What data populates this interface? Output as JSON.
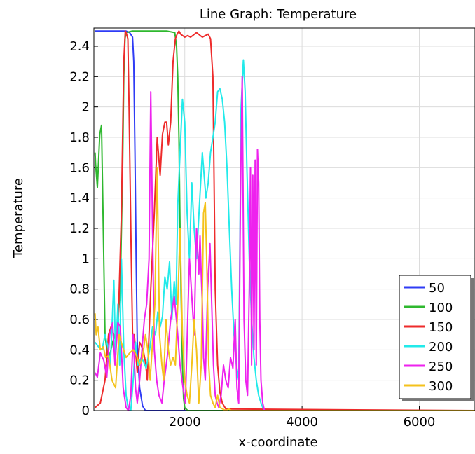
{
  "chart_data": {
    "type": "line",
    "title": "Line Graph: Temperature",
    "xlabel": "x-coordinate",
    "ylabel": "Temperature",
    "xlim": [
      450,
      6950
    ],
    "ylim": [
      0,
      2.52
    ],
    "xticks": [
      2000,
      4000,
      6000
    ],
    "xtick_labels": [
      "2000",
      "4000",
      "6000"
    ],
    "yticks": [
      0,
      0.2,
      0.4,
      0.6,
      0.8,
      1,
      1.2,
      1.4,
      1.6,
      1.8,
      2,
      2.2,
      2.4
    ],
    "ytick_labels": [
      "0",
      "0.2",
      "0.4",
      "0.6",
      "0.8",
      "1",
      "1.2",
      "1.4",
      "1.6",
      "1.8",
      "2",
      "2.2",
      "2.4"
    ],
    "grid": true,
    "legend_position": "bottom-right",
    "series": [
      {
        "name": "50",
        "color": "#2f3cf5",
        "x": [
          470,
          1000,
          1060,
          1110,
          1130,
          1150,
          1170,
          1190,
          1230,
          1280,
          1330,
          1400,
          6950
        ],
        "y": [
          2.5,
          2.5,
          2.49,
          2.46,
          2.3,
          1.7,
          1.0,
          0.45,
          0.15,
          0.03,
          0.0,
          0.0,
          0.0
        ]
      },
      {
        "name": "100",
        "color": "#2fb82f",
        "x": [
          470,
          480,
          510,
          550,
          580,
          610,
          640,
          690,
          730,
          770,
          810,
          850,
          900,
          940,
          960,
          980,
          1000,
          1100,
          1400,
          1700,
          1830,
          1860,
          1880,
          1900,
          1920,
          1940,
          1960,
          1980,
          2000,
          2050,
          6950
        ],
        "y": [
          1.7,
          1.62,
          1.47,
          1.82,
          1.88,
          1.2,
          0.5,
          0.34,
          0.38,
          0.45,
          0.5,
          0.55,
          0.8,
          1.6,
          2.2,
          2.45,
          2.49,
          2.5,
          2.5,
          2.5,
          2.49,
          2.4,
          2.2,
          1.8,
          1.2,
          0.7,
          0.3,
          0.08,
          0.02,
          0.0,
          0.0
        ]
      },
      {
        "name": "150",
        "color": "#ee2b2b",
        "x": [
          470,
          560,
          640,
          700,
          750,
          800,
          860,
          920,
          960,
          985,
          1000,
          1030,
          1050,
          1080,
          1110,
          1140,
          1190,
          1230,
          1290,
          1330,
          1360,
          1420,
          1480,
          1530,
          1580,
          1620,
          1660,
          1690,
          1720,
          1760,
          1800,
          1840,
          1870,
          1900,
          1930,
          2000,
          2050,
          2100,
          2200,
          2300,
          2400,
          2440,
          2480,
          2500,
          2520,
          2560,
          2600,
          2640,
          2700,
          6950
        ],
        "y": [
          0.02,
          0.05,
          0.2,
          0.5,
          0.56,
          0.48,
          0.5,
          1.3,
          2.3,
          2.5,
          2.49,
          2.45,
          2.0,
          1.2,
          0.5,
          0.5,
          0.25,
          0.45,
          0.4,
          0.32,
          0.2,
          0.8,
          1.3,
          1.8,
          1.55,
          1.82,
          1.9,
          1.9,
          1.75,
          1.9,
          2.3,
          2.45,
          2.48,
          2.5,
          2.48,
          2.46,
          2.47,
          2.46,
          2.49,
          2.46,
          2.48,
          2.45,
          2.2,
          1.5,
          0.8,
          0.3,
          0.12,
          0.05,
          0.01,
          0.0
        ]
      },
      {
        "name": "200",
        "color": "#22eaea",
        "x": [
          470,
          530,
          590,
          640,
          690,
          730,
          760,
          790,
          820,
          860,
          890,
          920,
          960,
          1000,
          1040,
          1080,
          1120,
          1160,
          1200,
          1260,
          1300,
          1340,
          1400,
          1450,
          1500,
          1540,
          1580,
          1620,
          1660,
          1700,
          1740,
          1780,
          1820,
          1850,
          1880,
          1920,
          1960,
          2000,
          2040,
          2080,
          2120,
          2160,
          2200,
          2250,
          2300,
          2360,
          2400,
          2440,
          2480,
          2520,
          2560,
          2600,
          2640,
          2680,
          2720,
          2760,
          2800,
          2840,
          2880,
          2920,
          2960,
          3000,
          3030,
          3060,
          3100,
          3140,
          3180,
          3220,
          3260,
          3300,
          3330,
          3360,
          6950
        ],
        "y": [
          0.45,
          0.42,
          0.4,
          0.5,
          0.42,
          0.3,
          0.55,
          0.86,
          0.35,
          0.7,
          0.3,
          1.0,
          0.4,
          0.1,
          0.0,
          0.0,
          0.2,
          0.45,
          0.3,
          0.35,
          0.32,
          0.28,
          0.4,
          0.55,
          0.5,
          0.65,
          0.55,
          0.62,
          0.88,
          0.8,
          0.98,
          0.6,
          0.85,
          0.7,
          1.35,
          1.7,
          2.05,
          1.9,
          1.3,
          1.0,
          1.5,
          1.2,
          1.0,
          1.35,
          1.7,
          1.4,
          1.5,
          1.7,
          1.8,
          1.9,
          2.1,
          2.12,
          2.05,
          1.9,
          1.6,
          1.2,
          0.8,
          0.5,
          0.3,
          0.2,
          2.0,
          2.31,
          2.1,
          1.6,
          1.0,
          0.6,
          0.35,
          0.2,
          0.1,
          0.05,
          0.02,
          0.0,
          0.0
        ]
      },
      {
        "name": "250",
        "color": "#ee22ee",
        "x": [
          470,
          510,
          560,
          620,
          670,
          720,
          770,
          810,
          860,
          900,
          950,
          1000,
          1040,
          1080,
          1120,
          1160,
          1190,
          1230,
          1270,
          1310,
          1350,
          1390,
          1420,
          1450,
          1480,
          1520,
          1560,
          1610,
          1650,
          1700,
          1760,
          1820,
          1870,
          1920,
          1970,
          2010,
          2050,
          2080,
          2120,
          2160,
          2200,
          2240,
          2260,
          2280,
          2300,
          2320,
          2350,
          2390,
          2430,
          2460,
          2490,
          2520,
          2550,
          2580,
          2620,
          2660,
          2700,
          2740,
          2780,
          2820,
          2860,
          2890,
          2920,
          2950,
          2980,
          3010,
          3040,
          3070,
          3100,
          3120,
          3140,
          3160,
          3180,
          3200,
          3220,
          3240,
          3260,
          3280,
          3300,
          3330,
          3360,
          6950
        ],
        "y": [
          0.25,
          0.22,
          0.38,
          0.33,
          0.22,
          0.5,
          0.58,
          0.3,
          0.58,
          0.55,
          0.15,
          0.02,
          0.0,
          0.1,
          0.5,
          0.15,
          0.05,
          0.2,
          0.4,
          0.6,
          0.7,
          1.0,
          2.1,
          1.2,
          0.4,
          0.2,
          0.1,
          0.05,
          0.2,
          0.35,
          0.6,
          0.75,
          0.55,
          0.3,
          0.15,
          0.05,
          0.6,
          1.0,
          0.75,
          0.5,
          1.2,
          0.9,
          1.15,
          0.9,
          0.7,
          0.35,
          0.2,
          0.8,
          1.1,
          0.7,
          0.3,
          0.1,
          0.05,
          0.02,
          0.1,
          0.3,
          0.2,
          0.15,
          0.35,
          0.28,
          0.6,
          0.15,
          0.05,
          1.4,
          2.2,
          0.6,
          0.2,
          0.1,
          0.8,
          1.6,
          0.3,
          1.55,
          0.4,
          1.65,
          0.3,
          1.72,
          1.5,
          0.6,
          0.2,
          0.05,
          0.0,
          0.0
        ]
      },
      {
        "name": "300",
        "color": "#f4c21c",
        "x": [
          470,
          490,
          520,
          560,
          610,
          650,
          700,
          760,
          820,
          880,
          940,
          1000,
          1060,
          1120,
          1180,
          1230,
          1280,
          1330,
          1370,
          1410,
          1450,
          1490,
          1530,
          1570,
          1610,
          1640,
          1680,
          1720,
          1760,
          1800,
          1840,
          1880,
          1920,
          1960,
          2000,
          2040,
          2080,
          2120,
          2160,
          2200,
          2240,
          2280,
          2320,
          2350,
          2380,
          2410,
          2440,
          2480,
          2520,
          2560,
          2600,
          2650,
          2700,
          2750,
          2800,
          2850,
          2900,
          2950,
          3000,
          6950
        ],
        "y": [
          0.64,
          0.5,
          0.55,
          0.4,
          0.42,
          0.35,
          0.36,
          0.2,
          0.15,
          0.5,
          0.42,
          0.35,
          0.38,
          0.4,
          0.36,
          0.3,
          0.35,
          0.5,
          0.4,
          0.2,
          0.45,
          0.7,
          1.6,
          0.5,
          0.3,
          0.2,
          0.6,
          0.4,
          0.3,
          0.35,
          0.3,
          0.7,
          1.2,
          0.5,
          0.2,
          0.1,
          0.05,
          0.3,
          0.6,
          0.4,
          0.05,
          0.3,
          1.3,
          1.37,
          0.9,
          0.3,
          0.1,
          0.05,
          0.02,
          0.1,
          0.02,
          0.01,
          0.0,
          0.01,
          0.0,
          0.0,
          0.0,
          0.0,
          0.0,
          0.0
        ]
      }
    ]
  }
}
